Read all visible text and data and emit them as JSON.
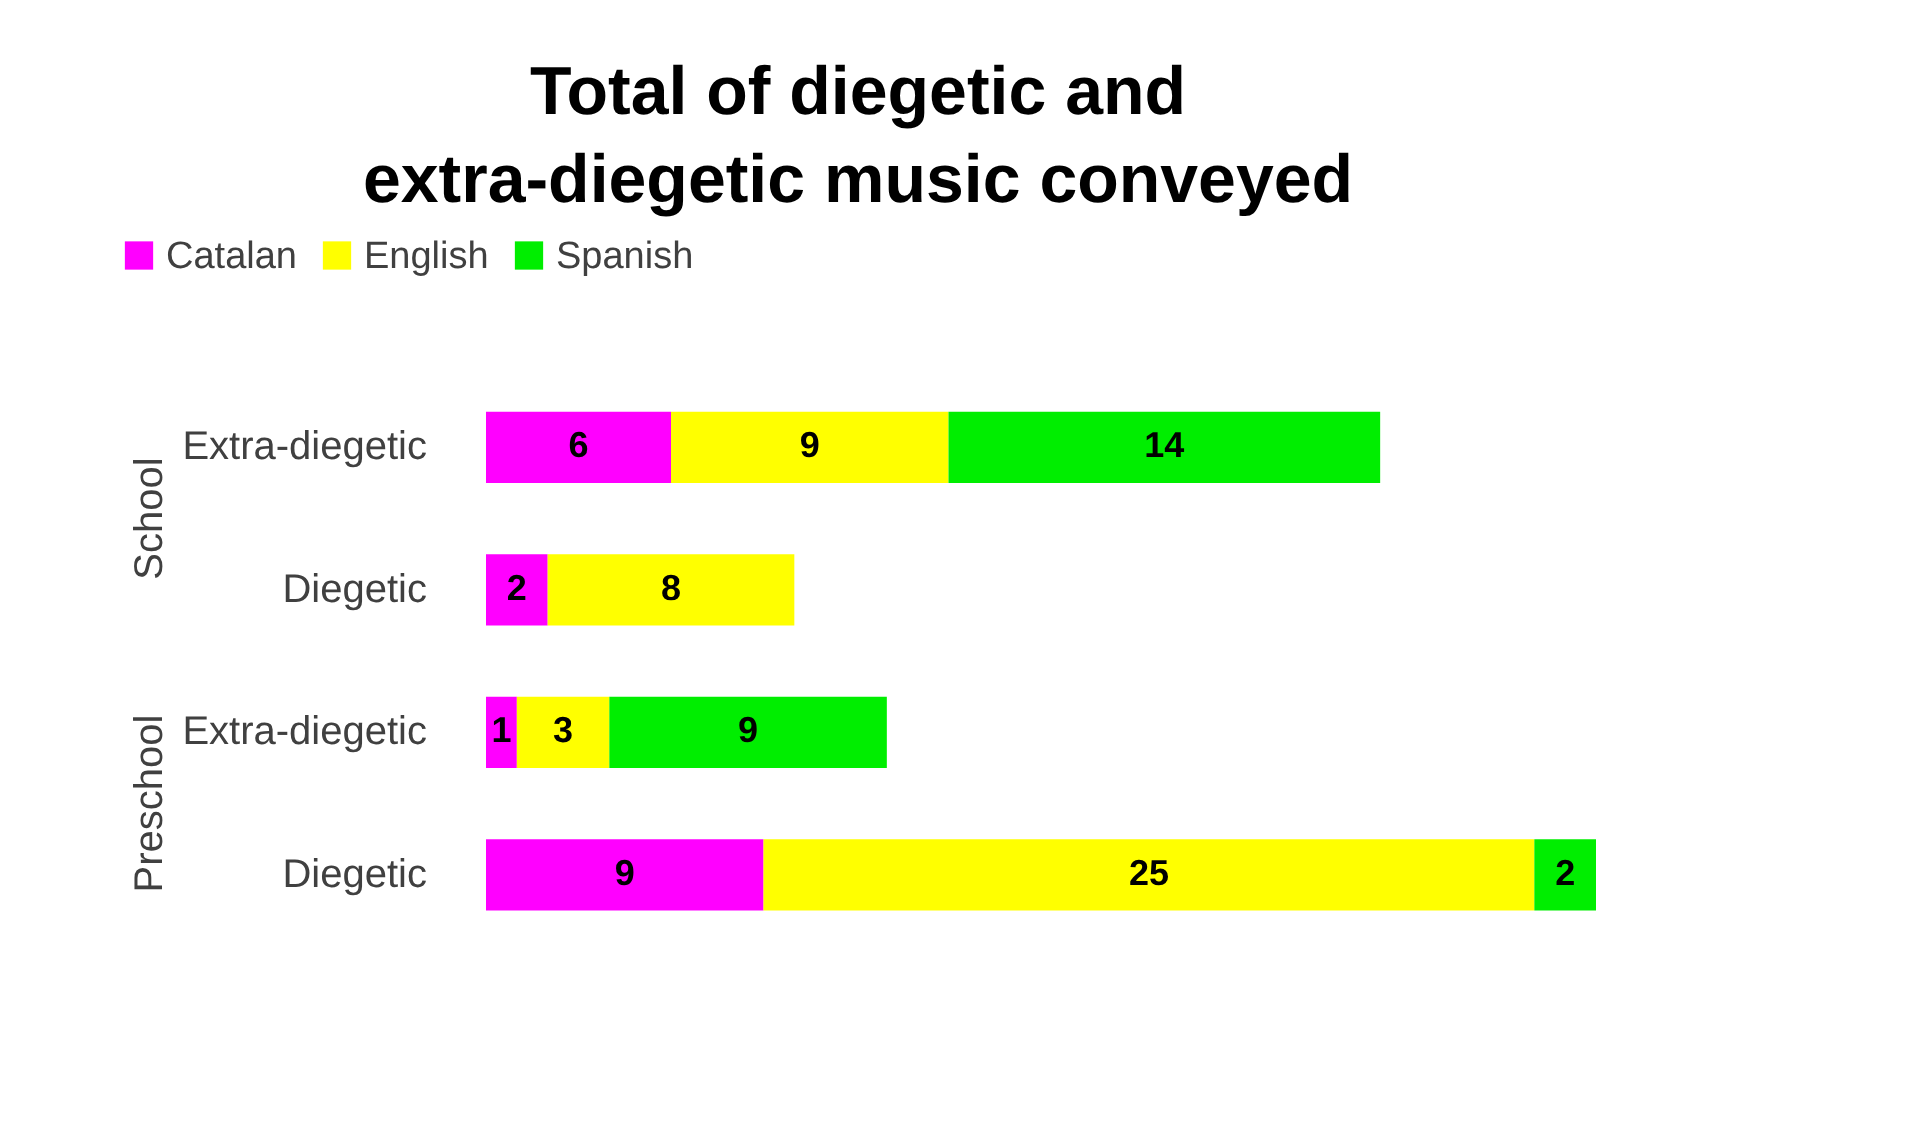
{
  "chart_data": {
    "type": "bar",
    "orientation": "horizontal",
    "stacked": true,
    "title": "Total of diegetic and extra-diegetic music conveyed",
    "categories": [
      "Extra-diegetic",
      "Diegetic",
      "Extra-diegetic",
      "Diegetic"
    ],
    "annotations": [
      "School",
      "Preschool"
    ],
    "series": [
      {
        "name": "Catalan",
        "color": "#ff00ff",
        "values": [
          6,
          2,
          1,
          9
        ]
      },
      {
        "name": "English",
        "color": "#ffff00",
        "values": [
          9,
          8,
          3,
          25
        ]
      },
      {
        "name": "Spanish",
        "color": "#00ee00",
        "values": [
          14,
          null,
          9,
          2
        ]
      }
    ],
    "data_labels": true,
    "legend": "top"
  }
}
